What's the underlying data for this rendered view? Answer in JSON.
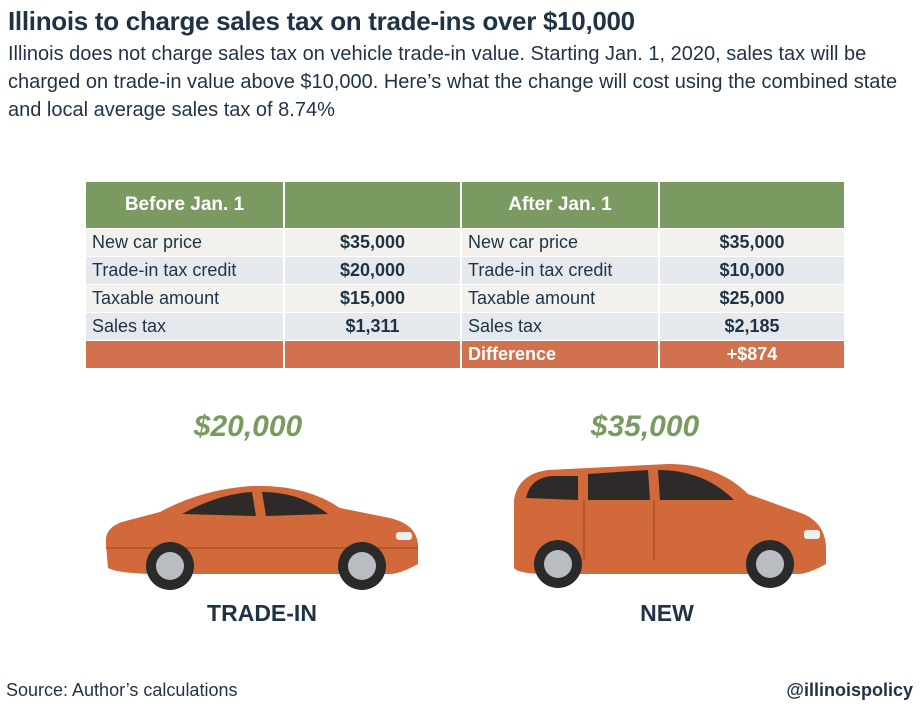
{
  "title": "Illinois to charge sales tax on trade-ins over $10,000",
  "subtitle": "Illinois does not charge sales tax on vehicle trade-in value. Starting Jan. 1, 2020, sales tax will be charged on trade-in value above $10,000. Here’s what the change will cost using the combined state and local average sales tax of 8.74%",
  "table": {
    "header_before": "Before Jan. 1",
    "header_after": "After Jan. 1",
    "rows": [
      {
        "label": "New car price",
        "before": "$35,000",
        "after": "$35,000"
      },
      {
        "label": "Trade-in tax credit",
        "before": "$20,000",
        "after": "$10,000"
      },
      {
        "label": "Taxable amount",
        "before": "$15,000",
        "after": "$25,000"
      },
      {
        "label": "Sales tax",
        "before": "$1,311",
        "after": "$2,185"
      }
    ],
    "difference_label": "Difference",
    "difference_value": "+$874"
  },
  "cars": {
    "trade_in": {
      "price": "$20,000",
      "label": "TRADE-IN",
      "icon": "sedan-icon"
    },
    "new": {
      "price": "$35,000",
      "label": "NEW",
      "icon": "minivan-icon"
    },
    "body_color": "#d2693a"
  },
  "colors": {
    "header_green": "#7b9a62",
    "difference_orange": "#d2714d",
    "text_navy": "#1f3346"
  },
  "footer": {
    "source": "Source: Author’s calculations",
    "handle": "@illinoispolicy"
  }
}
